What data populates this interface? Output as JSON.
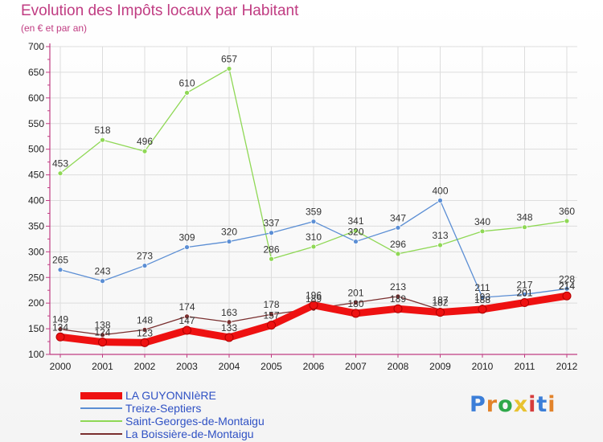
{
  "header": {
    "title": "Evolution des Impôts locaux par Habitant",
    "subtitle": "(en € et par an)"
  },
  "logo": {
    "text": "Proxiti",
    "colors": [
      "#3b7ed8",
      "#e2832a",
      "#2fa84a",
      "#e8c230",
      "#d63c3c",
      "#3b7ed8",
      "#e2832a"
    ]
  },
  "colors": {
    "axis": "#c03c82",
    "grid": "#dddddd",
    "tick_text": "#222222"
  },
  "chart_data": {
    "type": "line",
    "title": "Evolution des Impôts locaux par Habitant",
    "subtitle": "(en € et par an)",
    "xlabel": "",
    "ylabel": "",
    "x": [
      "2000",
      "2001",
      "2002",
      "2003",
      "2004",
      "2005",
      "2006",
      "2007",
      "2008",
      "2009",
      "2010",
      "2011",
      "2012"
    ],
    "ylim": [
      100,
      700
    ],
    "yticks": [
      100,
      150,
      200,
      250,
      300,
      350,
      400,
      450,
      500,
      550,
      600,
      650,
      700
    ],
    "grid": true,
    "legend_position": "bottom-left",
    "series": [
      {
        "name": "LA GUYONNIèRE",
        "color": "#ee1111",
        "values": [
          134,
          124,
          123,
          147,
          133,
          157,
          196,
          180,
          189,
          182,
          188,
          201,
          214
        ]
      },
      {
        "name": "Treize-Septiers",
        "color": "#5b8ed4",
        "values": [
          265,
          243,
          273,
          309,
          320,
          337,
          359,
          320,
          347,
          400,
          211,
          217,
          228
        ]
      },
      {
        "name": "Saint-Georges-de-Montaigu",
        "color": "#8fd855",
        "values": [
          453,
          518,
          496,
          610,
          657,
          286,
          310,
          341,
          296,
          313,
          340,
          348,
          360
        ]
      },
      {
        "name": "La Boissière-de-Montaigu",
        "color": "#7a2f2f",
        "values": [
          149,
          138,
          148,
          174,
          163,
          178,
          189,
          201,
          213,
          187,
          193,
          201,
          214
        ]
      }
    ]
  }
}
